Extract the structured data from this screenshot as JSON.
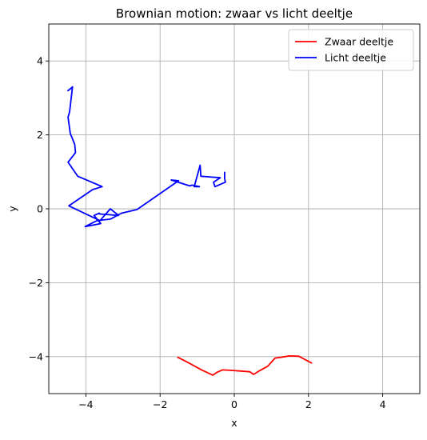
{
  "chart_data": {
    "type": "line",
    "title": "Brownian motion: zwaar vs licht deeltje",
    "xlabel": "x",
    "ylabel": "y",
    "xlim": [
      -5,
      5
    ],
    "ylim": [
      -5,
      5
    ],
    "xticks": [
      -4,
      -2,
      0,
      2,
      4
    ],
    "yticks": [
      -4,
      -2,
      0,
      2,
      4
    ],
    "xtick_labels": [
      "−4",
      "−2",
      "0",
      "2",
      "4"
    ],
    "ytick_labels": [
      "−4",
      "−2",
      "0",
      "2",
      "4"
    ],
    "grid": true,
    "legend_position": "top-right",
    "series": [
      {
        "name": "Zwaar deeltje",
        "color": "#ff0000",
        "x": [
          -1.52,
          -1.28,
          -0.88,
          -0.58,
          -0.46,
          -0.32,
          -0.1,
          0.42,
          0.52,
          0.68,
          0.9,
          1.1,
          1.3,
          1.48,
          1.74,
          2.08
        ],
        "y": [
          -4.02,
          -4.14,
          -4.36,
          -4.5,
          -4.42,
          -4.36,
          -4.37,
          -4.41,
          -4.48,
          -4.38,
          -4.26,
          -4.04,
          -4.01,
          -3.98,
          -3.99,
          -4.17
        ]
      },
      {
        "name": "Licht deeltje",
        "color": "#0000ff",
        "x": [
          -0.26,
          -0.26,
          -0.24,
          -0.52,
          -0.56,
          -0.38,
          -0.9,
          -0.92,
          -1.08,
          -0.94,
          -1.14,
          -1.2,
          -1.7,
          -1.5,
          -2.62,
          -3.04,
          -3.34,
          -3.7,
          -4.02,
          -3.6,
          -3.78,
          -3.64,
          -3.62,
          -3.12,
          -3.34,
          -3.62,
          -4.46,
          -3.82,
          -3.56,
          -4.22,
          -4.48,
          -4.28,
          -4.3,
          -4.42,
          -4.48,
          -4.44,
          -4.36,
          -4.4,
          -4.48
        ],
        "y": [
          0.98,
          0.82,
          0.72,
          0.6,
          0.72,
          0.84,
          0.88,
          1.18,
          0.6,
          0.6,
          0.64,
          0.62,
          0.78,
          0.76,
          -0.02,
          -0.12,
          -0.28,
          -0.32,
          -0.48,
          -0.4,
          -0.18,
          -0.12,
          -0.14,
          -0.18,
          0.0,
          -0.32,
          0.08,
          0.52,
          0.6,
          0.88,
          1.26,
          1.52,
          1.74,
          2.04,
          2.48,
          2.62,
          3.3,
          3.26,
          3.2
        ]
      }
    ]
  }
}
